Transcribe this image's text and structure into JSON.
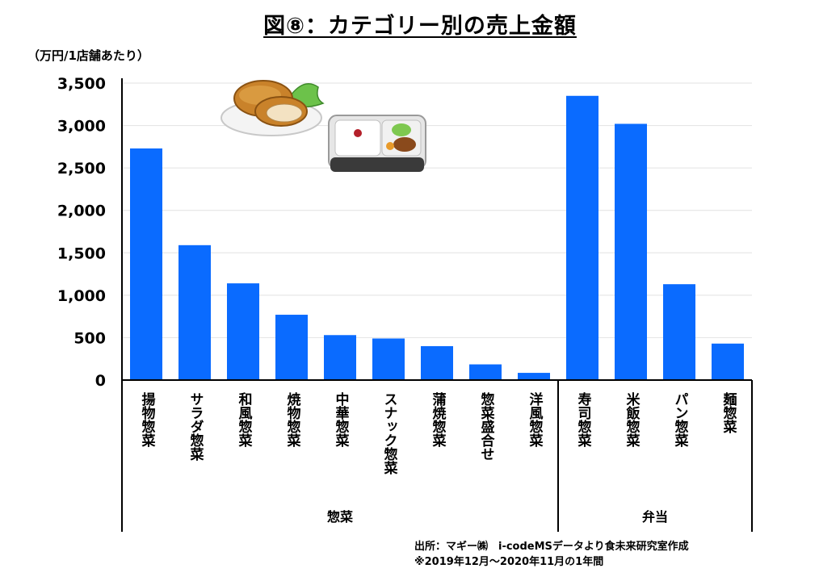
{
  "chart_data": {
    "type": "bar",
    "title": "図⑧：カテゴリー別の売上金額",
    "ylabel": "（万円/1店舗あたり）",
    "xlabel": "",
    "ylim": [
      0,
      3500
    ],
    "yticks": [
      "3,500",
      "3,000",
      "2,500",
      "2,000",
      "1,500",
      "1,000",
      "500",
      "0"
    ],
    "ytick_values": [
      3500,
      3000,
      2500,
      2000,
      1500,
      1000,
      500,
      0
    ],
    "grid": true,
    "bar_color": "#0a6bff",
    "categories": [
      "揚物惣菜",
      "サラダ惣菜",
      "和風惣菜",
      "焼物惣菜",
      "中華惣菜",
      "スナック惣菜",
      "蒲焼惣菜",
      "惣菜盛合せ",
      "洋風惣菜",
      "寿司惣菜",
      "米飯惣菜",
      "パン惣菜",
      "麺惣菜"
    ],
    "values": [
      2730,
      1590,
      1140,
      770,
      530,
      490,
      400,
      185,
      85,
      3350,
      3020,
      1130,
      430
    ],
    "groups": [
      {
        "name": "惣菜",
        "count": 9
      },
      {
        "name": "弁当",
        "count": 4
      }
    ]
  },
  "source_lines": [
    "出所：マギー㈱　i-codeMSデータより食未来研究室作成",
    "※2019年12月～2020年11月の1年間"
  ],
  "illustrations": [
    "croquette-illustration",
    "bento-box-illustration"
  ]
}
